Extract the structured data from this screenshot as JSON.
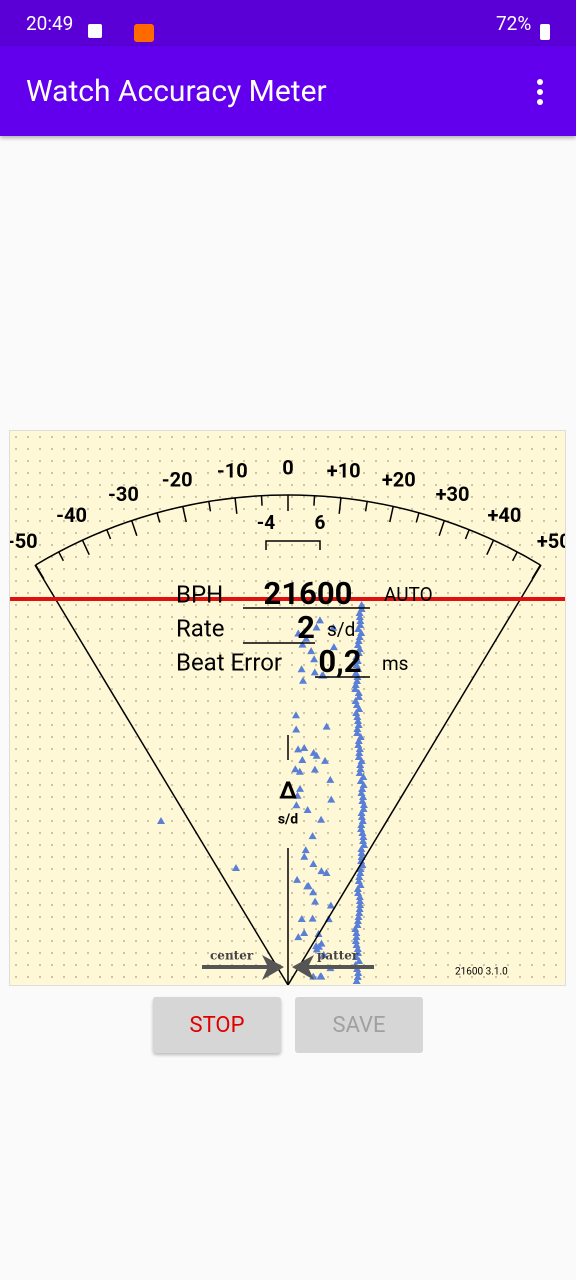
{
  "status_bar": {
    "time": "20:49",
    "battery": "72%"
  },
  "app_bar": {
    "title": "Watch Accuracy Meter"
  },
  "meter": {
    "scale_labels": [
      "-50",
      "-40",
      "-30",
      "-20",
      "-10",
      "0",
      "+10",
      "+20",
      "+30",
      "+40",
      "+50"
    ],
    "range_labels": [
      "-4",
      "6"
    ],
    "readouts": [
      {
        "label": "BPH",
        "value": "21600",
        "unit": "AUTO"
      },
      {
        "label": "Rate",
        "value": "2",
        "unit": "s/d"
      },
      {
        "label": "Beat Error",
        "value": "0,2",
        "unit": "ms"
      }
    ],
    "delta": {
      "symbol": "Δ",
      "unit": "s/d"
    },
    "pointers": [
      "center",
      "patter"
    ],
    "version": "21600 3.1.0"
  },
  "buttons": [
    "STOP",
    "SAVE"
  ]
}
